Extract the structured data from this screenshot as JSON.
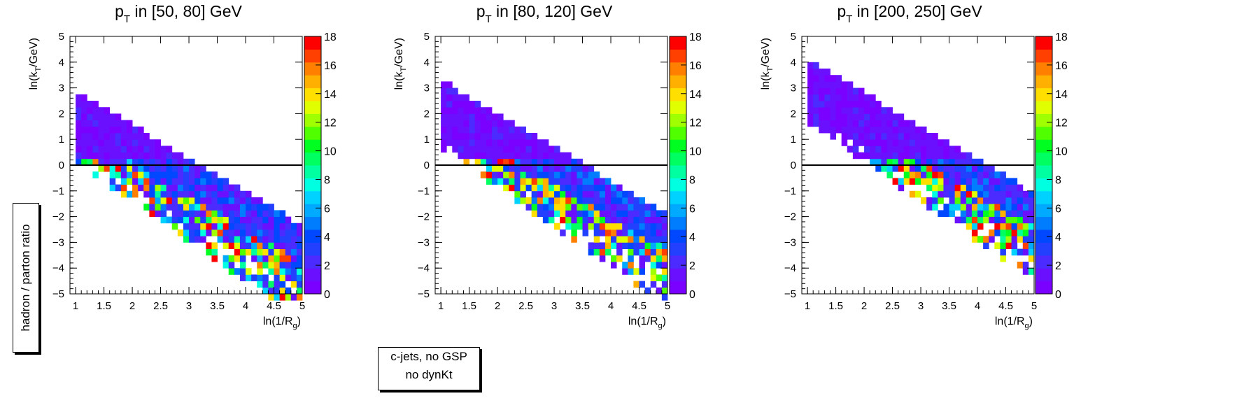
{
  "z_axis_label": "hadron / parton ratio",
  "note": {
    "line1": "c-jets, no GSP",
    "line2": "no dynKt"
  },
  "palette": [
    "#7a00ff",
    "#6a10ff",
    "#4b2bff",
    "#2340ff",
    "#0048ff",
    "#007cff",
    "#00aaff",
    "#00d2ff",
    "#00ffe0",
    "#00ffa0",
    "#00ff60",
    "#00ff20",
    "#50ff00",
    "#a0ff00",
    "#e0ff00",
    "#ffdf00",
    "#ffb000",
    "#ff8000",
    "#ff4000",
    "#ff0000"
  ],
  "chart_data": [
    {
      "type": "heatmap",
      "title_main": "p",
      "title_sub": "T",
      "title_rest": " in [50, 80] GeV",
      "xlabel": "ln(1/R_g)",
      "ylabel": "ln(k_T/GeV)",
      "x_ticks": [
        "1",
        "1.5",
        "2",
        "2.5",
        "3",
        "3.5",
        "4",
        "4.5",
        "5"
      ],
      "y_ticks": [
        "−5",
        "−4",
        "−3",
        "−2",
        "−1",
        "0",
        "1",
        "2",
        "3",
        "4",
        "5"
      ],
      "z_ticks": [
        "0",
        "2",
        "4",
        "6",
        "8",
        "10",
        "12",
        "14",
        "16",
        "18"
      ],
      "xlim": [
        0.9,
        5.0
      ],
      "ylim": [
        -5,
        5
      ],
      "zlim": [
        0,
        18
      ],
      "bin_width": 0.1,
      "bin_height": 0.25,
      "upper_edge_at_x1": 2.75,
      "slope": -1.3,
      "band_width": 2.5,
      "reference_line_y": 0
    },
    {
      "type": "heatmap",
      "title_main": "p",
      "title_sub": "T",
      "title_rest": " in [80, 120] GeV",
      "xlabel": "ln(1/R_g)",
      "ylabel": "ln(k_T/GeV)",
      "x_ticks": [
        "1",
        "1.5",
        "2",
        "2.5",
        "3",
        "3.5",
        "4",
        "4.5",
        "5"
      ],
      "y_ticks": [
        "−5",
        "−4",
        "−3",
        "−2",
        "−1",
        "0",
        "1",
        "2",
        "3",
        "4",
        "5"
      ],
      "z_ticks": [
        "0",
        "2",
        "4",
        "6",
        "8",
        "10",
        "12",
        "14",
        "16",
        "18"
      ],
      "xlim": [
        0.9,
        5.0
      ],
      "ylim": [
        -5,
        5
      ],
      "zlim": [
        0,
        18
      ],
      "bin_width": 0.1,
      "bin_height": 0.25,
      "upper_edge_at_x1": 3.2,
      "slope": -1.3,
      "band_width": 2.4,
      "reference_line_y": 0
    },
    {
      "type": "heatmap",
      "title_main": "p",
      "title_sub": "T",
      "title_rest": " in [200, 250] GeV",
      "xlabel": "ln(1/R_g)",
      "ylabel": "ln(k_T/GeV)",
      "x_ticks": [
        "1",
        "1.5",
        "2",
        "2.5",
        "3",
        "3.5",
        "4",
        "4.5",
        "5"
      ],
      "y_ticks": [
        "−5",
        "−4",
        "−3",
        "−2",
        "−1",
        "0",
        "1",
        "2",
        "3",
        "4",
        "5"
      ],
      "z_ticks": [
        "0",
        "2",
        "4",
        "6",
        "8",
        "10",
        "12",
        "14",
        "16",
        "18"
      ],
      "xlim": [
        0.9,
        5.0
      ],
      "ylim": [
        -5,
        5
      ],
      "zlim": [
        0,
        18
      ],
      "bin_width": 0.1,
      "bin_height": 0.25,
      "upper_edge_at_x1": 4.0,
      "slope": -1.3,
      "band_width": 2.2,
      "reference_line_y": 0
    }
  ]
}
